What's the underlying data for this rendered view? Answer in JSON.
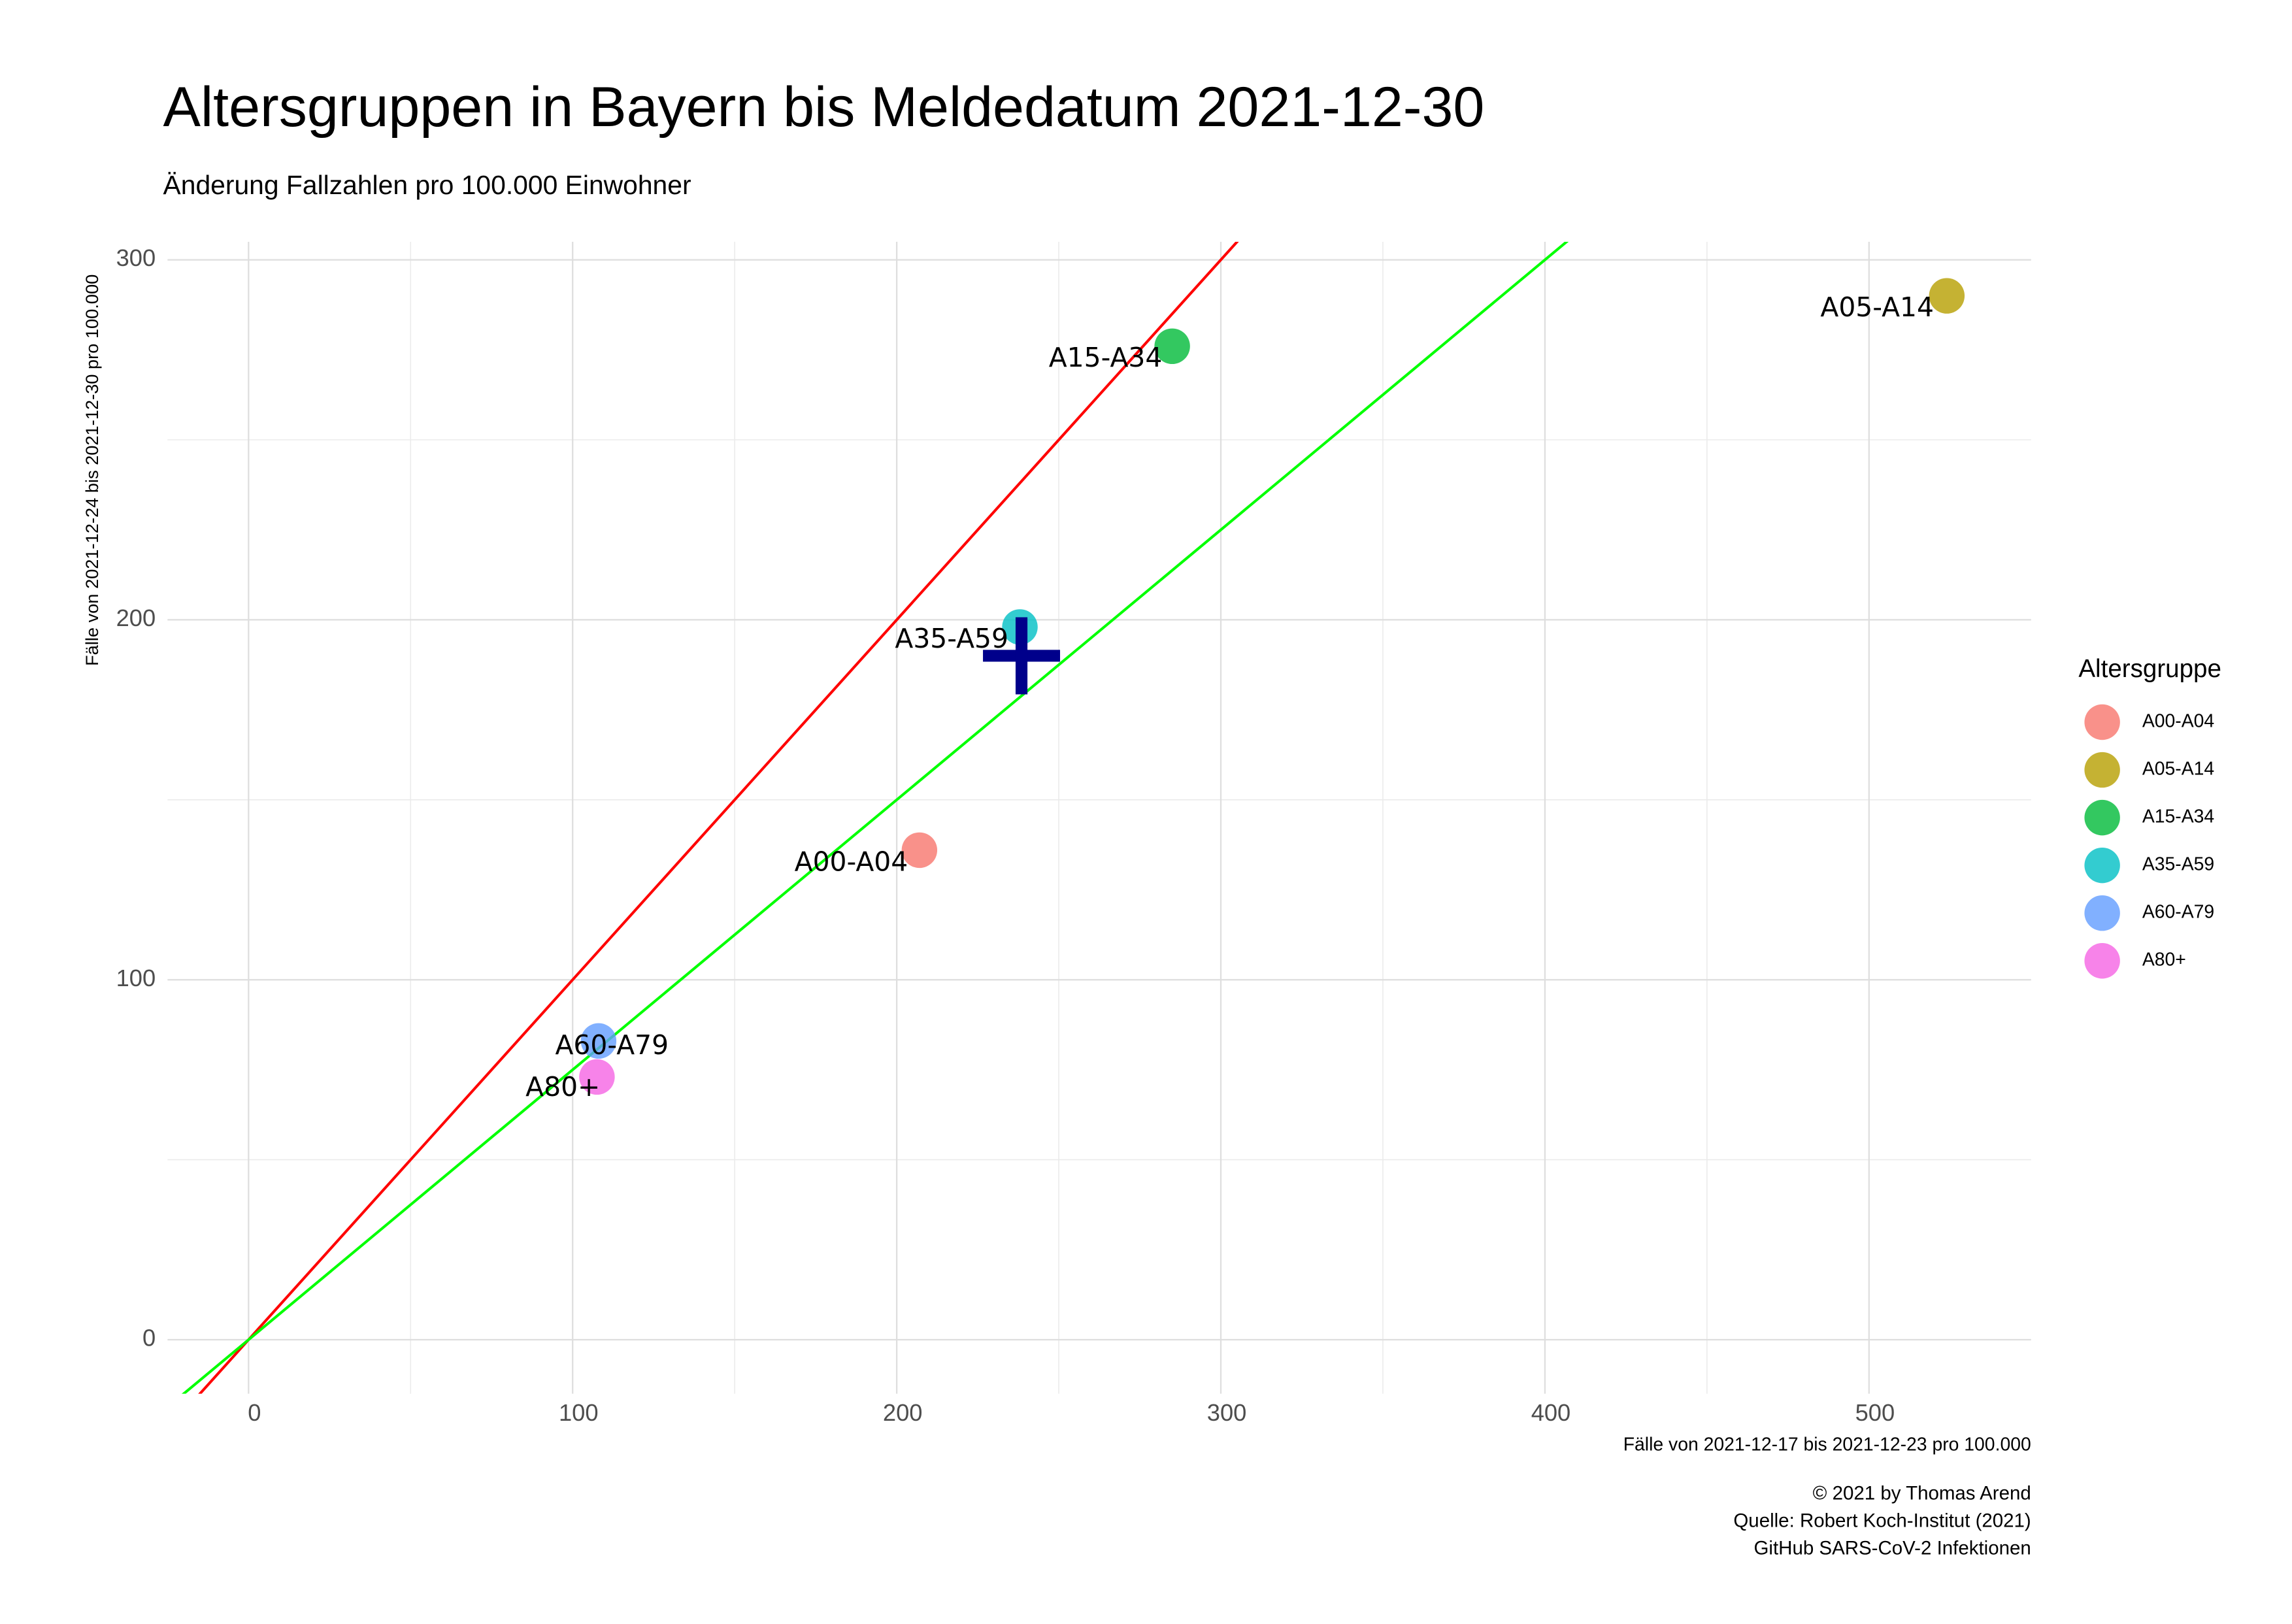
{
  "chart_data": {
    "type": "scatter",
    "title": "Altersgruppen in Bayern bis Meldedatum 2021-12-30",
    "subtitle": "Änderung Fallzahlen pro 100.000 Einwohner",
    "x_label": "Fälle von 2021-12-17 bis 2021-12-23 pro 100.000",
    "y_label": "Fälle von 2021-12-24 bis 2021-12-30 pro 100.000",
    "caption": [
      "© 2021 by Thomas Arend",
      "Quelle: Robert Koch-Institut (2021)",
      "GitHub SARS-CoV-2 Infektionen"
    ],
    "legend_title": "Altersgruppe",
    "legend_position": "right",
    "grid": true,
    "xlim": [
      -25,
      550
    ],
    "ylim": [
      -15,
      305
    ],
    "xticks": [
      0,
      100,
      200,
      300,
      400,
      500
    ],
    "yticks": [
      0,
      100,
      200,
      300
    ],
    "xminorticks": [
      50,
      150,
      250,
      350,
      450
    ],
    "yminorticks": [
      50,
      150,
      250
    ],
    "series": [
      {
        "name": "A00-A04",
        "color": "#F8766D",
        "x": [
          207
        ],
        "values": [
          136
        ]
      },
      {
        "name": "A05-A14",
        "color": "#B79F00",
        "x": [
          524
        ],
        "values": [
          290
        ]
      },
      {
        "name": "A15-A34",
        "color": "#00BA38",
        "x": [
          285
        ],
        "values": [
          276
        ]
      },
      {
        "name": "A35-A59",
        "color": "#00BFC4",
        "x": [
          238
        ],
        "values": [
          198
        ]
      },
      {
        "name": "A60-A79",
        "color": "#619CFF",
        "x": [
          108
        ],
        "values": [
          83
        ]
      },
      {
        "name": "A80+",
        "color": "#F564E3",
        "x": [
          107.5
        ],
        "values": [
          73
        ]
      }
    ],
    "lines": [
      {
        "slope": 1,
        "color": "#ff0000"
      },
      {
        "slope": 0.75,
        "color": "#00ff00"
      }
    ],
    "center": {
      "x": 238.5,
      "y": 190,
      "color": "#00008B"
    }
  }
}
